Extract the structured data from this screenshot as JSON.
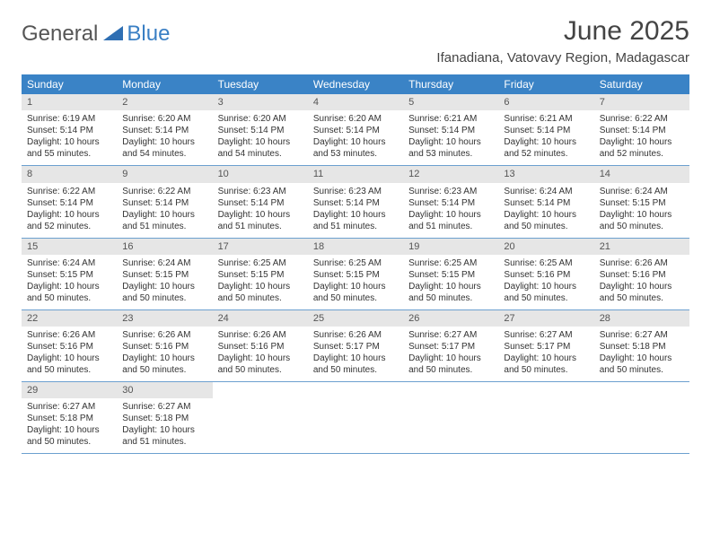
{
  "logo": {
    "text_general": "General",
    "text_blue": "Blue"
  },
  "title": "June 2025",
  "location": "Ifanadiana, Vatovavy Region, Madagascar",
  "day_headers": [
    "Sunday",
    "Monday",
    "Tuesday",
    "Wednesday",
    "Thursday",
    "Friday",
    "Saturday"
  ],
  "colors": {
    "header_bg": "#3a83c6",
    "header_text": "#ffffff",
    "daynum_bg": "#e6e6e6",
    "border": "#6ca0cf",
    "logo_gray": "#555555",
    "logo_blue": "#3a7fc4"
  },
  "weeks": [
    [
      {
        "n": "1",
        "sr": "Sunrise: 6:19 AM",
        "ss": "Sunset: 5:14 PM",
        "d1": "Daylight: 10 hours",
        "d2": "and 55 minutes."
      },
      {
        "n": "2",
        "sr": "Sunrise: 6:20 AM",
        "ss": "Sunset: 5:14 PM",
        "d1": "Daylight: 10 hours",
        "d2": "and 54 minutes."
      },
      {
        "n": "3",
        "sr": "Sunrise: 6:20 AM",
        "ss": "Sunset: 5:14 PM",
        "d1": "Daylight: 10 hours",
        "d2": "and 54 minutes."
      },
      {
        "n": "4",
        "sr": "Sunrise: 6:20 AM",
        "ss": "Sunset: 5:14 PM",
        "d1": "Daylight: 10 hours",
        "d2": "and 53 minutes."
      },
      {
        "n": "5",
        "sr": "Sunrise: 6:21 AM",
        "ss": "Sunset: 5:14 PM",
        "d1": "Daylight: 10 hours",
        "d2": "and 53 minutes."
      },
      {
        "n": "6",
        "sr": "Sunrise: 6:21 AM",
        "ss": "Sunset: 5:14 PM",
        "d1": "Daylight: 10 hours",
        "d2": "and 52 minutes."
      },
      {
        "n": "7",
        "sr": "Sunrise: 6:22 AM",
        "ss": "Sunset: 5:14 PM",
        "d1": "Daylight: 10 hours",
        "d2": "and 52 minutes."
      }
    ],
    [
      {
        "n": "8",
        "sr": "Sunrise: 6:22 AM",
        "ss": "Sunset: 5:14 PM",
        "d1": "Daylight: 10 hours",
        "d2": "and 52 minutes."
      },
      {
        "n": "9",
        "sr": "Sunrise: 6:22 AM",
        "ss": "Sunset: 5:14 PM",
        "d1": "Daylight: 10 hours",
        "d2": "and 51 minutes."
      },
      {
        "n": "10",
        "sr": "Sunrise: 6:23 AM",
        "ss": "Sunset: 5:14 PM",
        "d1": "Daylight: 10 hours",
        "d2": "and 51 minutes."
      },
      {
        "n": "11",
        "sr": "Sunrise: 6:23 AM",
        "ss": "Sunset: 5:14 PM",
        "d1": "Daylight: 10 hours",
        "d2": "and 51 minutes."
      },
      {
        "n": "12",
        "sr": "Sunrise: 6:23 AM",
        "ss": "Sunset: 5:14 PM",
        "d1": "Daylight: 10 hours",
        "d2": "and 51 minutes."
      },
      {
        "n": "13",
        "sr": "Sunrise: 6:24 AM",
        "ss": "Sunset: 5:14 PM",
        "d1": "Daylight: 10 hours",
        "d2": "and 50 minutes."
      },
      {
        "n": "14",
        "sr": "Sunrise: 6:24 AM",
        "ss": "Sunset: 5:15 PM",
        "d1": "Daylight: 10 hours",
        "d2": "and 50 minutes."
      }
    ],
    [
      {
        "n": "15",
        "sr": "Sunrise: 6:24 AM",
        "ss": "Sunset: 5:15 PM",
        "d1": "Daylight: 10 hours",
        "d2": "and 50 minutes."
      },
      {
        "n": "16",
        "sr": "Sunrise: 6:24 AM",
        "ss": "Sunset: 5:15 PM",
        "d1": "Daylight: 10 hours",
        "d2": "and 50 minutes."
      },
      {
        "n": "17",
        "sr": "Sunrise: 6:25 AM",
        "ss": "Sunset: 5:15 PM",
        "d1": "Daylight: 10 hours",
        "d2": "and 50 minutes."
      },
      {
        "n": "18",
        "sr": "Sunrise: 6:25 AM",
        "ss": "Sunset: 5:15 PM",
        "d1": "Daylight: 10 hours",
        "d2": "and 50 minutes."
      },
      {
        "n": "19",
        "sr": "Sunrise: 6:25 AM",
        "ss": "Sunset: 5:15 PM",
        "d1": "Daylight: 10 hours",
        "d2": "and 50 minutes."
      },
      {
        "n": "20",
        "sr": "Sunrise: 6:25 AM",
        "ss": "Sunset: 5:16 PM",
        "d1": "Daylight: 10 hours",
        "d2": "and 50 minutes."
      },
      {
        "n": "21",
        "sr": "Sunrise: 6:26 AM",
        "ss": "Sunset: 5:16 PM",
        "d1": "Daylight: 10 hours",
        "d2": "and 50 minutes."
      }
    ],
    [
      {
        "n": "22",
        "sr": "Sunrise: 6:26 AM",
        "ss": "Sunset: 5:16 PM",
        "d1": "Daylight: 10 hours",
        "d2": "and 50 minutes."
      },
      {
        "n": "23",
        "sr": "Sunrise: 6:26 AM",
        "ss": "Sunset: 5:16 PM",
        "d1": "Daylight: 10 hours",
        "d2": "and 50 minutes."
      },
      {
        "n": "24",
        "sr": "Sunrise: 6:26 AM",
        "ss": "Sunset: 5:16 PM",
        "d1": "Daylight: 10 hours",
        "d2": "and 50 minutes."
      },
      {
        "n": "25",
        "sr": "Sunrise: 6:26 AM",
        "ss": "Sunset: 5:17 PM",
        "d1": "Daylight: 10 hours",
        "d2": "and 50 minutes."
      },
      {
        "n": "26",
        "sr": "Sunrise: 6:27 AM",
        "ss": "Sunset: 5:17 PM",
        "d1": "Daylight: 10 hours",
        "d2": "and 50 minutes."
      },
      {
        "n": "27",
        "sr": "Sunrise: 6:27 AM",
        "ss": "Sunset: 5:17 PM",
        "d1": "Daylight: 10 hours",
        "d2": "and 50 minutes."
      },
      {
        "n": "28",
        "sr": "Sunrise: 6:27 AM",
        "ss": "Sunset: 5:18 PM",
        "d1": "Daylight: 10 hours",
        "d2": "and 50 minutes."
      }
    ],
    [
      {
        "n": "29",
        "sr": "Sunrise: 6:27 AM",
        "ss": "Sunset: 5:18 PM",
        "d1": "Daylight: 10 hours",
        "d2": "and 50 minutes."
      },
      {
        "n": "30",
        "sr": "Sunrise: 6:27 AM",
        "ss": "Sunset: 5:18 PM",
        "d1": "Daylight: 10 hours",
        "d2": "and 51 minutes."
      },
      null,
      null,
      null,
      null,
      null
    ]
  ]
}
